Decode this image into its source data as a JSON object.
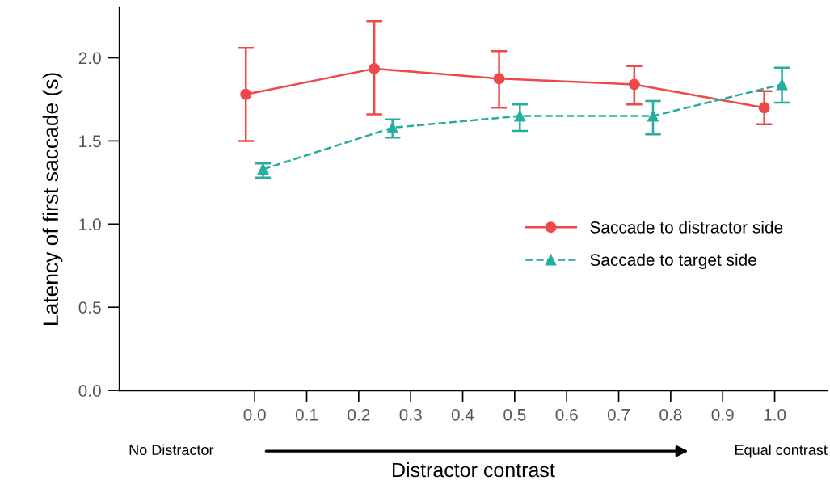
{
  "chart_data": {
    "type": "line",
    "xlabel": "Distractor contrast",
    "ylabel": "Latency of first saccade (s)",
    "xlim": [
      -0.26,
      1.1
    ],
    "xticks": [
      {
        "value": 0,
        "label": "0.0"
      },
      0.1,
      0.2,
      0.3,
      0.4,
      0.5,
      0.6,
      0.7,
      0.8,
      0.9,
      {
        "value": 1,
        "label": "1.0"
      }
    ],
    "ylim": [
      0,
      2.3
    ],
    "yticks": [
      {
        "value": 0,
        "label": "0.0"
      },
      0.5,
      {
        "value": 1,
        "label": "1.0"
      },
      1.5,
      {
        "value": 2,
        "label": "2.0"
      }
    ],
    "grid": false,
    "legend": "right",
    "annotations": [
      "No Distractor",
      "Equal contrast"
    ],
    "series": [
      {
        "name": "Saccade to distractor side",
        "color": "#f04848",
        "marker": "circle",
        "line_style": "solid",
        "x": [
          -0.017,
          0.23,
          0.47,
          0.73,
          0.98
        ],
        "values": [
          1.78,
          1.935,
          1.875,
          1.84,
          1.7
        ],
        "errors": [
          [
            1.5,
            2.06
          ],
          [
            1.66,
            2.22
          ],
          [
            1.7,
            2.04
          ],
          [
            1.72,
            1.95
          ],
          [
            1.6,
            1.8
          ]
        ]
      },
      {
        "name": "Saccade to target side",
        "color": "#26ada0",
        "marker": "triangle",
        "line_style": "dashed",
        "x": [
          0.016,
          0.265,
          0.51,
          0.766,
          1.014
        ],
        "values": [
          1.33,
          1.58,
          1.65,
          1.65,
          1.84
        ],
        "errors": [
          [
            1.28,
            1.365
          ],
          [
            1.52,
            1.63
          ],
          [
            1.56,
            1.72
          ],
          [
            1.54,
            1.74
          ],
          [
            1.73,
            1.94
          ]
        ]
      }
    ]
  }
}
